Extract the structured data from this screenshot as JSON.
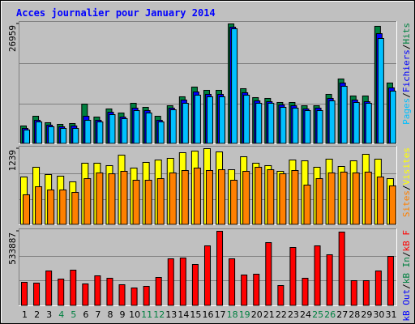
{
  "title": "Acces journalier pour January 2014",
  "legend_separator": "/",
  "categories": [
    "1",
    "2",
    "3",
    "4",
    "5",
    "6",
    "7",
    "8",
    "9",
    "10",
    "11",
    "12",
    "13",
    "14",
    "15",
    "16",
    "17",
    "18",
    "19",
    "20",
    "21",
    "22",
    "23",
    "24",
    "25",
    "26",
    "27",
    "28",
    "29",
    "30",
    "31"
  ],
  "category_colors": [
    "#000000",
    "#000000",
    "#000000",
    "#008040",
    "#008040",
    "#000000",
    "#000000",
    "#000000",
    "#000000",
    "#000000",
    "#008040",
    "#008040",
    "#000000",
    "#000000",
    "#000000",
    "#000000",
    "#000000",
    "#008040",
    "#008040",
    "#000000",
    "#000000",
    "#000000",
    "#000000",
    "#000000",
    "#008040",
    "#008040",
    "#000000",
    "#000000",
    "#000000",
    "#000000",
    "#000000"
  ],
  "chart_data": [
    {
      "type": "bar",
      "ylim": [
        0,
        26959
      ],
      "yticks": [
        26959
      ],
      "series": [
        {
          "name": "Hits",
          "color": "#008040",
          "values": [
            4008,
            6195,
            4737,
            4373,
            4555,
            8928,
            6013,
            7835,
            6924,
            9110,
            8199,
            6195,
            8563,
            10568,
            12754,
            12025,
            12025,
            26959,
            12390,
            10385,
            10203,
            9292,
            9292,
            8563,
            8563,
            11114,
            14576,
            10750,
            10750,
            26420,
            13665
          ]
        },
        {
          "name": "Fichiers",
          "color": "#0000ff",
          "values": [
            3462,
            5284,
            4191,
            3826,
            4008,
            6195,
            5284,
            7106,
            6013,
            8017,
            7470,
            5284,
            8017,
            9838,
            11660,
            11114,
            11114,
            26230,
            11478,
            9656,
            9474,
            8745,
            8563,
            7835,
            8017,
            10203,
            13665,
            9838,
            9474,
            24774,
            12572
          ]
        },
        {
          "name": "Pages",
          "color": "#00c0ff",
          "values": [
            3097,
            4920,
            3826,
            3462,
            3462,
            5284,
            4920,
            6560,
            5648,
            7470,
            6924,
            4920,
            7652,
            9110,
            10932,
            10568,
            10568,
            25865,
            10932,
            9110,
            9110,
            8199,
            8017,
            7470,
            7470,
            9656,
            12936,
            9292,
            9110,
            23680,
            11843
          ]
        }
      ]
    },
    {
      "type": "bar",
      "ylim": [
        0,
        1239
      ],
      "yticks": [
        1239
      ],
      "series": [
        {
          "name": "Visites",
          "color": "#ffff00",
          "values": [
            778,
            936,
            817,
            791,
            699,
            1002,
            1002,
            962,
            1133,
            923,
            1015,
            1054,
            1081,
            1173,
            1199,
            1239,
            1186,
            896,
            1107,
            1002,
            962,
            870,
            1054,
            1041,
            936,
            1068,
            949,
            1041,
            1147,
            1068,
            751
          ]
        },
        {
          "name": "Sites",
          "color": "#ff8000",
          "values": [
            488,
            619,
            567,
            567,
            527,
            751,
            844,
            830,
            870,
            725,
            725,
            751,
            844,
            883,
            923,
            883,
            896,
            725,
            870,
            936,
            896,
            830,
            883,
            646,
            751,
            844,
            857,
            844,
            857,
            778,
            633
          ]
        }
      ]
    },
    {
      "type": "bar",
      "ylim": [
        0,
        533887
      ],
      "yticks": [
        533887
      ],
      "series": [
        {
          "name": "kB F",
          "color": "#ff0000",
          "values": [
            168287,
            162484,
            249529,
            191499,
            255332,
            156681,
            214711,
            197302,
            150878,
            127666,
            139272,
            203105,
            336574,
            342377,
            295953,
            429422,
            533887,
            336574,
            220514,
            226317,
            452634,
            145075,
            417816,
            197302,
            429422,
            365589,
            528073,
            179893,
            179893,
            249529,
            353983
          ]
        },
        {
          "name": "kB In",
          "color": "#008040"
        },
        {
          "name": "kB Out",
          "color": "#0000ff"
        }
      ]
    }
  ]
}
